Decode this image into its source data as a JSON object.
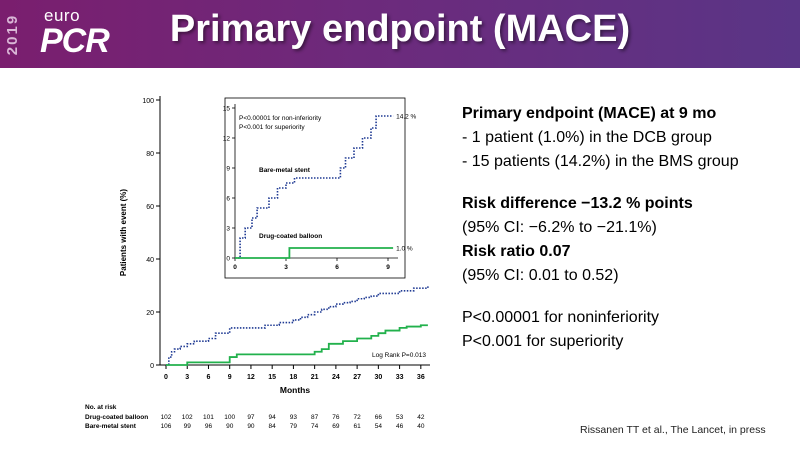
{
  "header": {
    "logo_year": "2019",
    "logo_euro": "euro",
    "logo_pcr": "PCR",
    "title": "Primary endpoint (MACE)"
  },
  "text": {
    "heading": "Primary endpoint (MACE) at 9 mo",
    "bullet1": "- 1 patient (1.0%) in the DCB group",
    "bullet2": "- 15 patients (14.2%) in the BMS group",
    "risk_diff": "Risk difference −13.2 % points",
    "risk_diff_ci": "(95% CI: −6.2% to −21.1%)",
    "risk_ratio": "Risk ratio 0.07",
    "risk_ratio_ci": "(95% CI: 0.01 to 0.52)",
    "p1": "P<0.00001 for noninferiority",
    "p2": "P<0.001 for superiority"
  },
  "citation": "Rissanen TT et al., The Lancet, in press",
  "colors": {
    "bms": "#1f3a93",
    "dcb": "#22b14c",
    "header_start": "#7a1e6e",
    "header_end": "#5a3586"
  },
  "chart_data": [
    {
      "type": "line",
      "title": "",
      "xlabel": "Months",
      "ylabel": "Patients with event (%)",
      "xlim": [
        0,
        37
      ],
      "ylim": [
        0,
        100
      ],
      "xticks": [
        0,
        3,
        6,
        9,
        12,
        15,
        18,
        21,
        24,
        27,
        30,
        33,
        36
      ],
      "yticks": [
        0,
        20,
        40,
        60,
        80,
        100
      ],
      "annotation": "Log Rank P=0.013",
      "series": [
        {
          "name": "Bare-metal stent",
          "style": "dotted",
          "x": [
            0,
            0.4,
            0.8,
            1.2,
            2,
            3,
            4,
            6,
            7,
            9,
            14,
            16,
            18,
            19,
            20,
            21,
            22,
            23,
            24,
            25,
            26,
            27,
            28,
            29,
            30,
            33,
            35,
            37
          ],
          "y": [
            0,
            3,
            5,
            6,
            7,
            8,
            9,
            10,
            12,
            14,
            15,
            16,
            17,
            18,
            19,
            20,
            21,
            22,
            23,
            23.5,
            24,
            25,
            25.5,
            26,
            27,
            28,
            29,
            30
          ]
        },
        {
          "name": "Drug-coated balloon",
          "style": "solid",
          "x": [
            0,
            3,
            9,
            10,
            21,
            22,
            23,
            25,
            27,
            29,
            30,
            31,
            33,
            34,
            36,
            37
          ],
          "y": [
            0,
            1,
            3,
            4,
            5,
            6,
            8,
            9,
            10,
            11,
            12,
            13,
            14,
            14.5,
            15,
            15
          ]
        }
      ],
      "risk_table": {
        "header": "No. at risk",
        "rows": [
          {
            "label": "Drug-coated balloon",
            "values": [
              102,
              102,
              101,
              100,
              97,
              94,
              93,
              87,
              76,
              72,
              66,
              53,
              42
            ]
          },
          {
            "label": "Bare-metal stent",
            "values": [
              106,
              99,
              96,
              90,
              90,
              84,
              79,
              74,
              69,
              61,
              54,
              46,
              40
            ]
          }
        ]
      }
    },
    {
      "type": "line",
      "title": "inset",
      "xlim": [
        0,
        9
      ],
      "ylim": [
        0,
        15
      ],
      "xticks": [
        0,
        3,
        6,
        9
      ],
      "yticks": [
        0,
        3,
        6,
        9,
        12,
        15
      ],
      "annotations": [
        "P<0.00001 for non-inferiority",
        "P<0.001 for superiority"
      ],
      "series": [
        {
          "name": "Bare-metal stent",
          "style": "dotted",
          "end_label": "14.2 %",
          "x": [
            0,
            0.3,
            0.6,
            1,
            1.3,
            2,
            2.5,
            3,
            3.5,
            4.5,
            6.2,
            6.5,
            7,
            7.5,
            8,
            8.3,
            9.3
          ],
          "y": [
            0,
            2,
            3,
            4,
            5,
            6,
            7,
            7.5,
            8,
            8,
            9,
            10,
            11,
            12,
            13,
            14.2,
            14.2
          ]
        },
        {
          "name": "Drug-coated balloon",
          "style": "solid",
          "end_label": "1.0 %",
          "x": [
            0,
            3.2,
            9.3
          ],
          "y": [
            0,
            1,
            1
          ]
        }
      ]
    }
  ]
}
